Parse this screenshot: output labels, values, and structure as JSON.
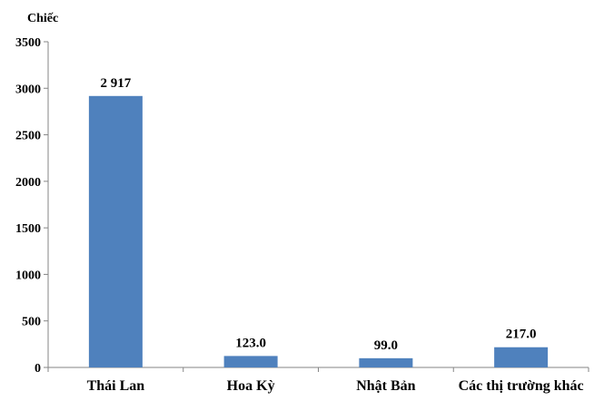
{
  "chart_data": {
    "type": "bar",
    "ylabel": "Chiếc",
    "categories": [
      "Thái Lan",
      "Hoa Kỳ",
      "Nhật Bản",
      "Các thị trường khác"
    ],
    "values": [
      2917,
      123,
      99,
      217
    ],
    "data_labels": [
      "2 917",
      "123.0",
      "99.0",
      "217.0"
    ],
    "yticks": [
      "0",
      "500",
      "1000",
      "1500",
      "2000",
      "2500",
      "3000",
      "3500"
    ],
    "ylim": [
      0,
      3500
    ],
    "bar_color": "#4f81bd",
    "grid": false,
    "legend": "none"
  }
}
